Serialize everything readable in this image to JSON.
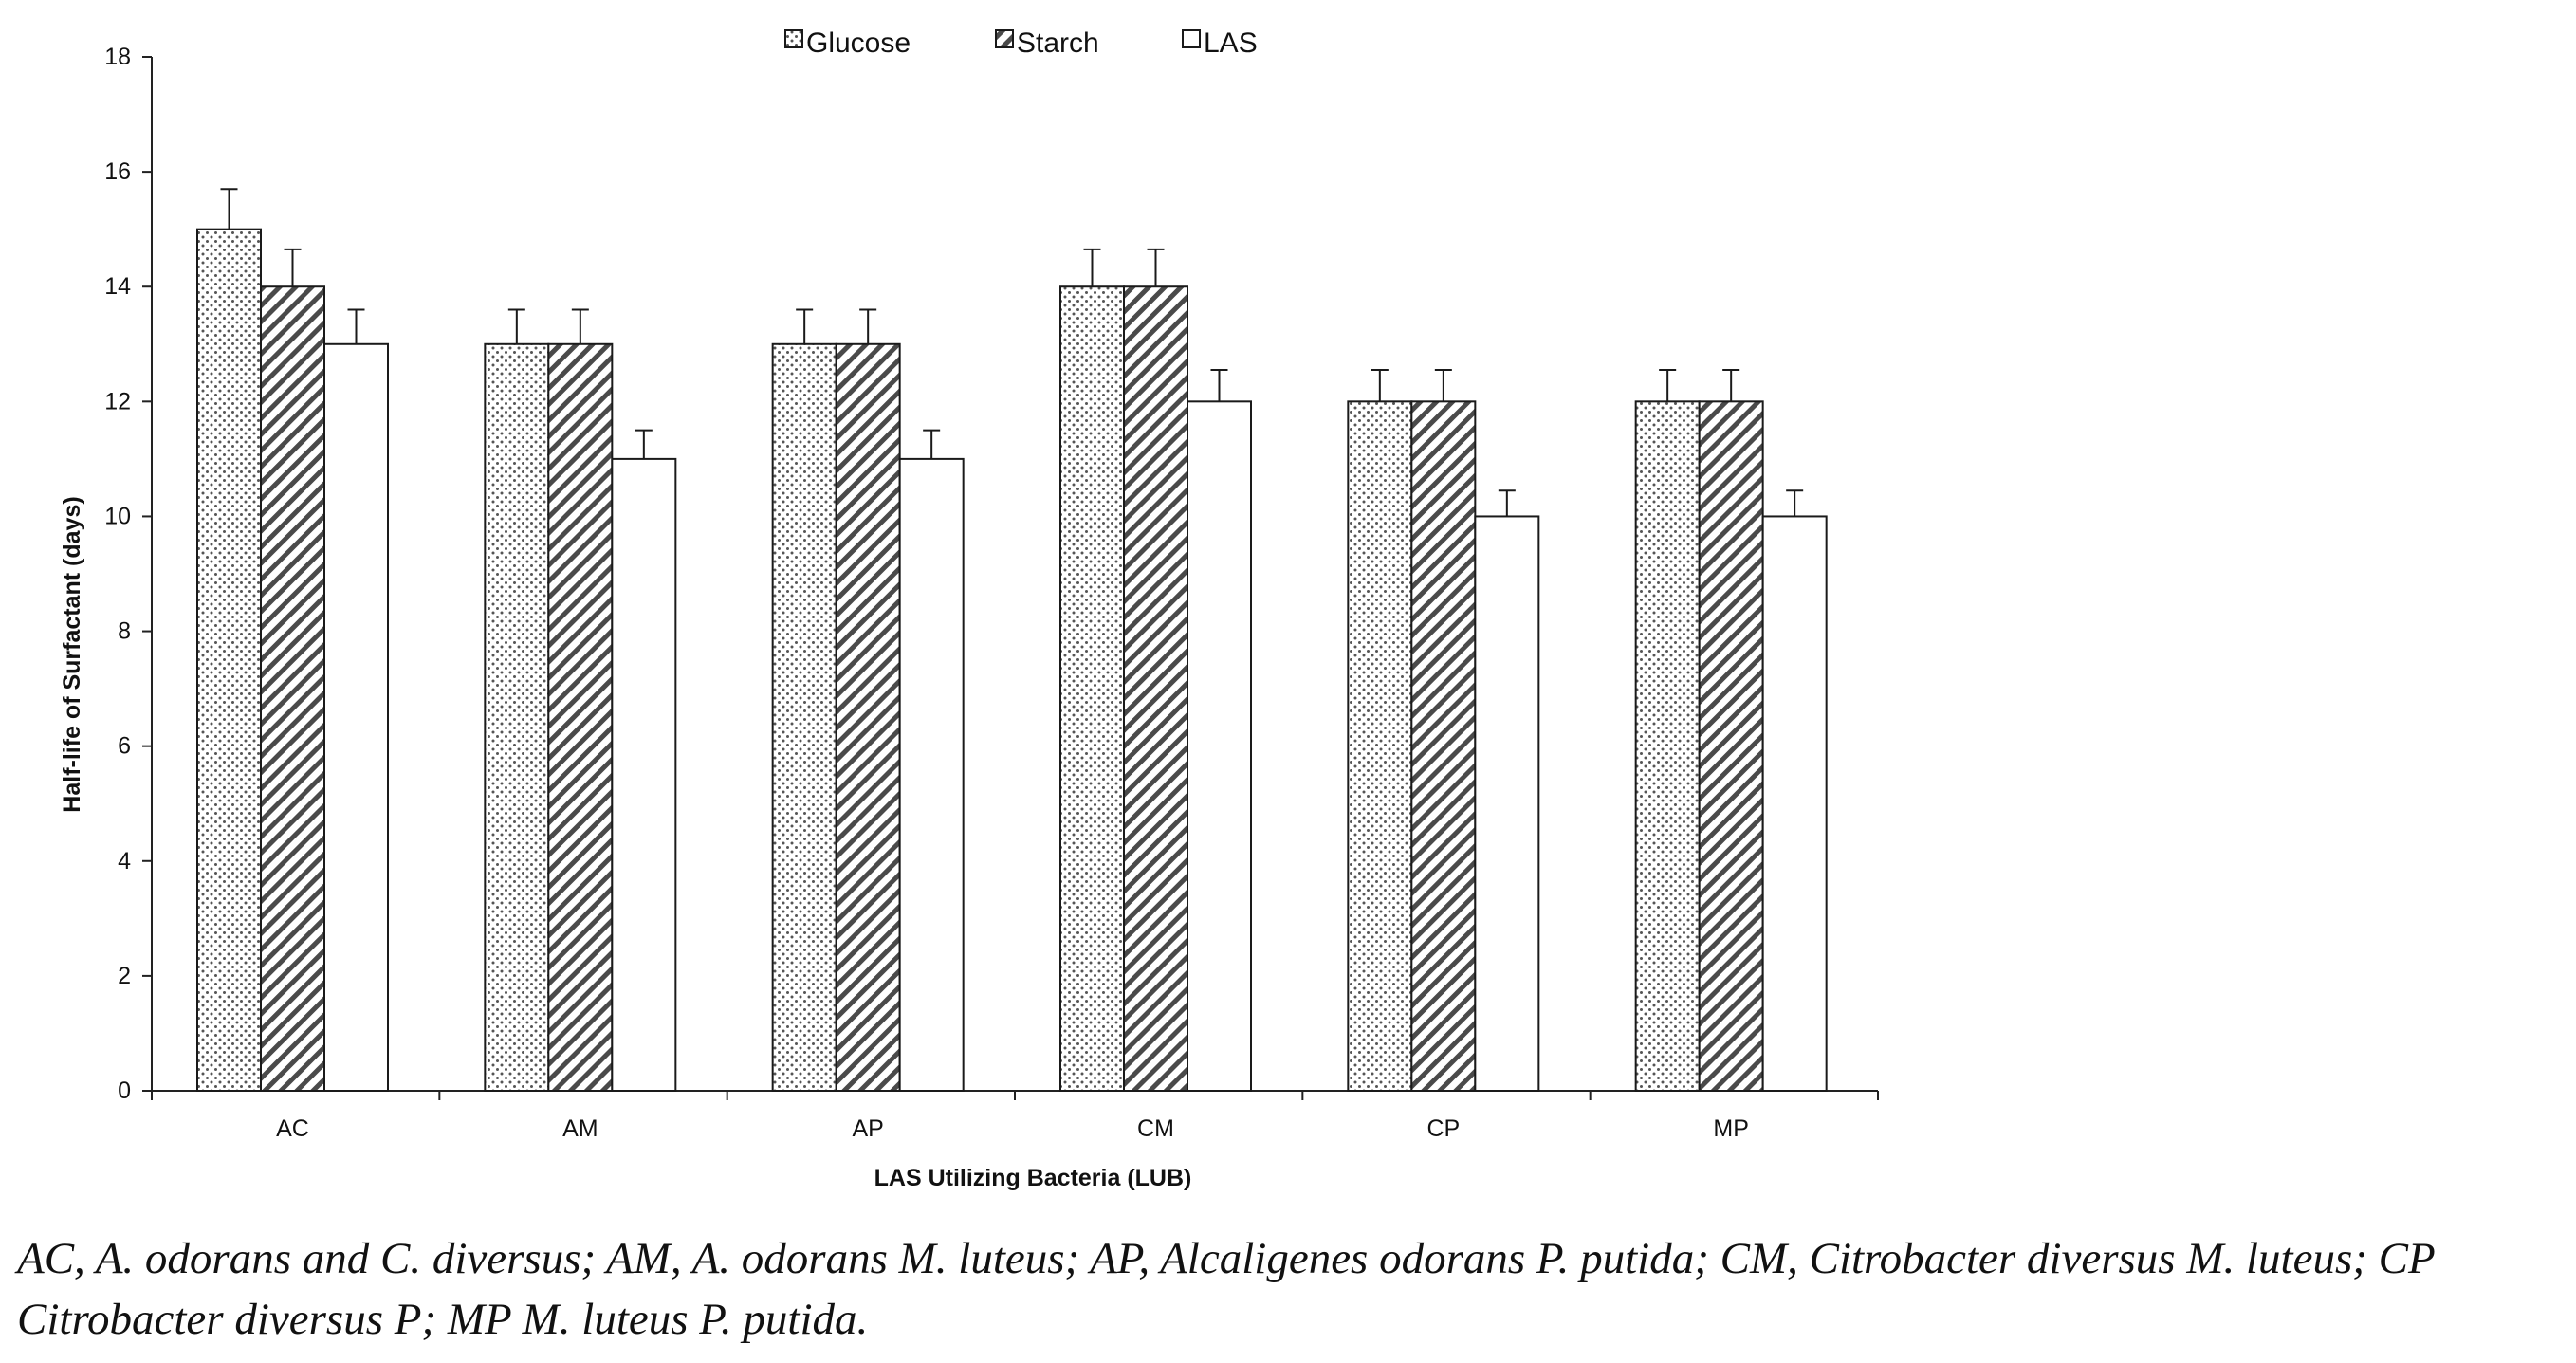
{
  "chart_data": {
    "type": "bar",
    "title": "",
    "xlabel": "LAS Utilizing Bacteria (LUB)",
    "ylabel": "Half-life of Surfactant (days)",
    "ylim": [
      0,
      18
    ],
    "yticks": [
      0,
      2,
      4,
      6,
      8,
      10,
      12,
      14,
      16,
      18
    ],
    "categories": [
      "AC",
      "AM",
      "AP",
      "CM",
      "CP",
      "MP"
    ],
    "series": [
      {
        "name": "Glucose",
        "pattern": "dots",
        "values": [
          15,
          13,
          13,
          14,
          12,
          12
        ],
        "errors": [
          0.7,
          0.6,
          0.6,
          0.65,
          0.55,
          0.55
        ]
      },
      {
        "name": "Starch",
        "pattern": "diagonal",
        "values": [
          14,
          13,
          13,
          14,
          12,
          12
        ],
        "errors": [
          0.65,
          0.6,
          0.6,
          0.65,
          0.55,
          0.55
        ]
      },
      {
        "name": "LAS",
        "pattern": "none",
        "values": [
          13,
          11,
          11,
          12,
          10,
          10
        ],
        "errors": [
          0.6,
          0.5,
          0.5,
          0.55,
          0.45,
          0.45
        ]
      }
    ],
    "legend_position": "top",
    "grid": false,
    "error_bars": true
  },
  "caption": "AC, A. odorans and C. diversus; AM, A. odorans M. luteus; AP, Alcaligenes odorans P. putida; CM, Citrobacter diversus M. luteus; CP Citrobacter diversus P; MP M. luteus P. putida.",
  "colors": {
    "bar_stroke": "#1a1a1a",
    "bar_fill": "#ffffff",
    "pattern": "#555555",
    "axis": "#222222"
  }
}
